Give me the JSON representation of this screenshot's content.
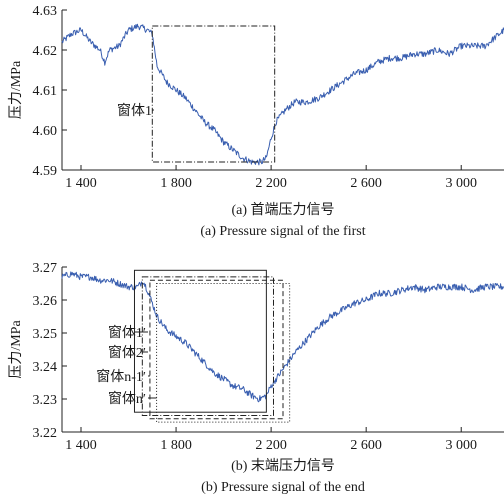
{
  "chart_data": [
    {
      "type": "line",
      "title": "",
      "caption_cn": "(a) 首端压力信号",
      "caption_en": "(a) Pressure signal of the first",
      "xlabel": "",
      "ylabel": "压力/MPa",
      "xlim": [
        1320,
        3180
      ],
      "ylim": [
        4.59,
        4.63
      ],
      "xticks": [
        1400,
        1800,
        2200,
        2600,
        3000
      ],
      "xtick_labels": [
        "1 400",
        "1 800",
        "2 200",
        "2 600",
        "3 000"
      ],
      "yticks": [
        4.59,
        4.6,
        4.61,
        4.62,
        4.63
      ],
      "ytick_labels": [
        "4.59",
        "4.60",
        "4.61",
        "4.62",
        "4.63"
      ],
      "color": "#3a5fb0",
      "series": [
        {
          "x": [
            1320,
            1360,
            1400,
            1440,
            1480,
            1500,
            1520,
            1560,
            1600,
            1640,
            1680,
            1700,
            1720,
            1760,
            1800,
            1840,
            1880,
            1920,
            1960,
            2000,
            2040,
            2080,
            2120,
            2160,
            2180,
            2200,
            2220,
            2260,
            2300,
            2350,
            2400,
            2450,
            2500,
            2550,
            2600,
            2650,
            2700,
            2750,
            2800,
            2850,
            2900,
            2950,
            3000,
            3050,
            3100,
            3140,
            3180
          ],
          "y": [
            4.622,
            4.624,
            4.625,
            4.622,
            4.62,
            4.617,
            4.62,
            4.621,
            4.625,
            4.626,
            4.625,
            4.624,
            4.616,
            4.612,
            4.61,
            4.608,
            4.605,
            4.602,
            4.6,
            4.597,
            4.595,
            4.593,
            4.592,
            4.592,
            4.593,
            4.598,
            4.602,
            4.605,
            4.607,
            4.607,
            4.608,
            4.61,
            4.612,
            4.614,
            4.615,
            4.617,
            4.618,
            4.618,
            4.619,
            4.619,
            4.62,
            4.619,
            4.621,
            4.621,
            4.621,
            4.623,
            4.625
          ]
        }
      ],
      "annotations": [
        {
          "text": "窗体1",
          "x_range": [
            1700,
            2215
          ],
          "y_range": [
            4.592,
            4.626
          ]
        }
      ]
    },
    {
      "type": "line",
      "title": "",
      "caption_cn": "(b) 末端压力信号",
      "caption_en": "(b) Pressure signal of the end",
      "xlabel": "",
      "ylabel": "压力/MPa",
      "xlim": [
        1320,
        3180
      ],
      "ylim": [
        3.22,
        3.27
      ],
      "xticks": [
        1400,
        1800,
        2200,
        2600,
        3000
      ],
      "xtick_labels": [
        "1 400",
        "1 800",
        "2 200",
        "2 600",
        "3 000"
      ],
      "yticks": [
        3.22,
        3.23,
        3.24,
        3.25,
        3.26,
        3.27
      ],
      "ytick_labels": [
        "3.22",
        "3.23",
        "3.24",
        "3.25",
        "3.26",
        "3.27"
      ],
      "color": "#3a5fb0",
      "series": [
        {
          "x": [
            1320,
            1360,
            1400,
            1440,
            1480,
            1520,
            1560,
            1600,
            1640,
            1660,
            1680,
            1700,
            1720,
            1760,
            1800,
            1840,
            1880,
            1920,
            1960,
            2000,
            2040,
            2080,
            2120,
            2150,
            2180,
            2200,
            2230,
            2260,
            2300,
            2350,
            2400,
            2450,
            2500,
            2550,
            2600,
            2650,
            2700,
            2750,
            2800,
            2850,
            2900,
            2950,
            3000,
            3050,
            3100,
            3140,
            3180
          ],
          "y": [
            3.267,
            3.268,
            3.267,
            3.267,
            3.266,
            3.266,
            3.265,
            3.264,
            3.264,
            3.266,
            3.263,
            3.259,
            3.255,
            3.251,
            3.249,
            3.247,
            3.244,
            3.241,
            3.238,
            3.236,
            3.234,
            3.233,
            3.231,
            3.23,
            3.231,
            3.234,
            3.237,
            3.24,
            3.244,
            3.248,
            3.252,
            3.255,
            3.257,
            3.259,
            3.26,
            3.262,
            3.262,
            3.263,
            3.264,
            3.263,
            3.264,
            3.264,
            3.264,
            3.263,
            3.264,
            3.264,
            3.264
          ]
        }
      ],
      "annotations": [
        {
          "text": "窗体1′",
          "x_range": [
            1625,
            2180
          ],
          "y_range": [
            3.226,
            3.269
          ],
          "style": "solid"
        },
        {
          "text": "窗体2′",
          "x_range": [
            1658,
            2210
          ],
          "y_range": [
            3.225,
            3.267
          ],
          "style": "dashdot"
        },
        {
          "text": "窗体n-1′",
          "x_range": [
            1690,
            2250
          ],
          "y_range": [
            3.224,
            3.266
          ],
          "style": "dashed"
        },
        {
          "text": "窗体n′",
          "x_range": [
            1718,
            2278
          ],
          "y_range": [
            3.223,
            3.265
          ],
          "style": "dotted"
        }
      ]
    }
  ]
}
